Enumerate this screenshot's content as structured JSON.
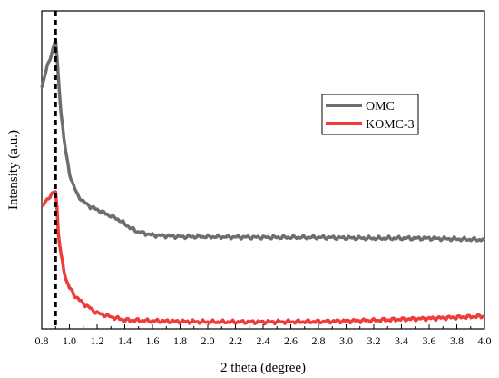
{
  "chart_data": {
    "type": "line",
    "xlabel": "2 theta (degree)",
    "ylabel": "Intensity (a.u.)",
    "xlim": [
      0.8,
      4.0
    ],
    "ylim": [
      0,
      100
    ],
    "y_ticks_labeled": false,
    "x_ticks": [
      "0.8",
      "1.0",
      "1.2",
      "1.4",
      "1.6",
      "1.8",
      "2.0",
      "2.2",
      "2.4",
      "2.6",
      "2.8",
      "3.0",
      "3.2",
      "3.4",
      "3.6",
      "3.8",
      "4.0"
    ],
    "reference_line": {
      "x": 0.9,
      "style": "dashed"
    },
    "legend_position": "top-right",
    "grid": false,
    "series": [
      {
        "name": "OMC",
        "color": "#6e6e6e",
        "x": [
          0.8,
          0.83,
          0.86,
          0.88,
          0.9,
          0.92,
          0.94,
          0.96,
          0.98,
          1.0,
          1.03,
          1.06,
          1.1,
          1.15,
          1.2,
          1.25,
          1.3,
          1.35,
          1.4,
          1.45,
          1.5,
          1.6,
          1.8,
          2.0,
          2.4,
          2.8,
          3.2,
          3.6,
          4.0
        ],
        "y": [
          76,
          81,
          85,
          88,
          91,
          79,
          68,
          60,
          54,
          49,
          45,
          42,
          40,
          38.5,
          37.5,
          36.5,
          35.5,
          34.5,
          33,
          31.5,
          30.5,
          29.5,
          29,
          29,
          28.8,
          28.8,
          28.5,
          28.5,
          28
        ]
      },
      {
        "name": "KOMC-3",
        "color": "#ee3b3b",
        "x": [
          0.8,
          0.83,
          0.86,
          0.88,
          0.9,
          0.91,
          0.92,
          0.94,
          0.96,
          0.98,
          1.0,
          1.03,
          1.06,
          1.1,
          1.15,
          1.2,
          1.3,
          1.4,
          1.6,
          2.0,
          2.4,
          2.8,
          3.2,
          3.6,
          4.0
        ],
        "y": [
          38,
          40.5,
          41.5,
          42.5,
          43.5,
          38,
          30,
          23,
          18.5,
          15,
          13,
          11,
          9.5,
          8,
          6.5,
          5,
          3.8,
          2.8,
          2.5,
          2.2,
          2.2,
          2.3,
          2.7,
          3.3,
          4
        ]
      }
    ]
  }
}
